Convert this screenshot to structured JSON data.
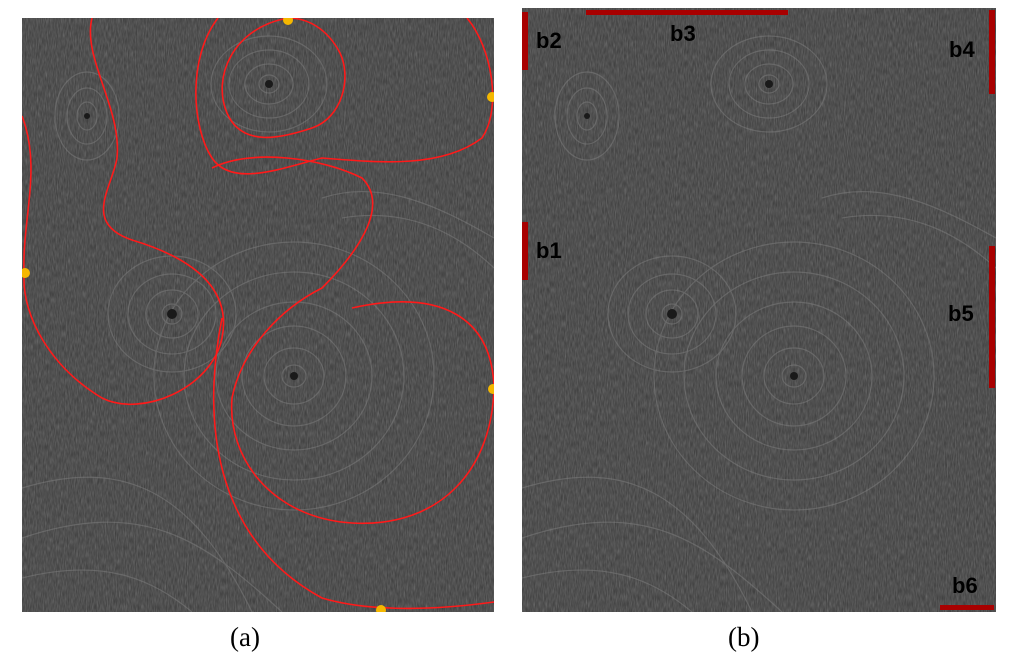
{
  "panel_a": {
    "caption": "(a)"
  },
  "panel_b": {
    "caption": "(b)",
    "labels": [
      "b1",
      "b2",
      "b3",
      "b4",
      "b5",
      "b6"
    ]
  },
  "colors": {
    "background": "#3a3a3a",
    "streak": "#8a8a8a",
    "boundary_curve": "#ff1a1a",
    "seed_point": "#f5b800",
    "segment": "#a80000",
    "label": "#000000"
  }
}
